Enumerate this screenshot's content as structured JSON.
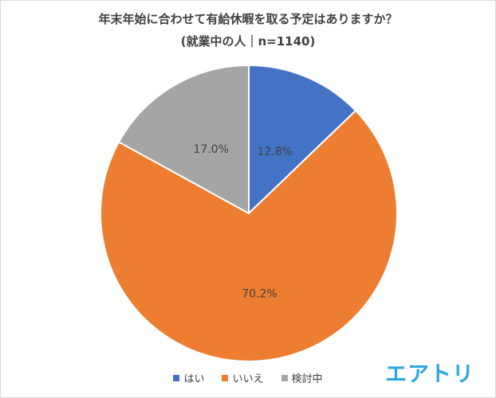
{
  "chart_data": {
    "type": "pie",
    "title": "年末年始に合わせて有給休暇を取る予定はありますか？",
    "subtitle": "(就業中の人｜n=1140)",
    "categories": [
      "はい",
      "いいえ",
      "検討中"
    ],
    "values": [
      12.8,
      70.2,
      17.0
    ],
    "labels": [
      "12.8%",
      "70.2%",
      "17.0%"
    ],
    "colors": [
      "#4472c4",
      "#ed7d31",
      "#a5a5a5"
    ],
    "unit": "%",
    "legend_position": "bottom"
  },
  "brand": {
    "logo_text": "エアトリ",
    "color": "#2fa8de"
  }
}
